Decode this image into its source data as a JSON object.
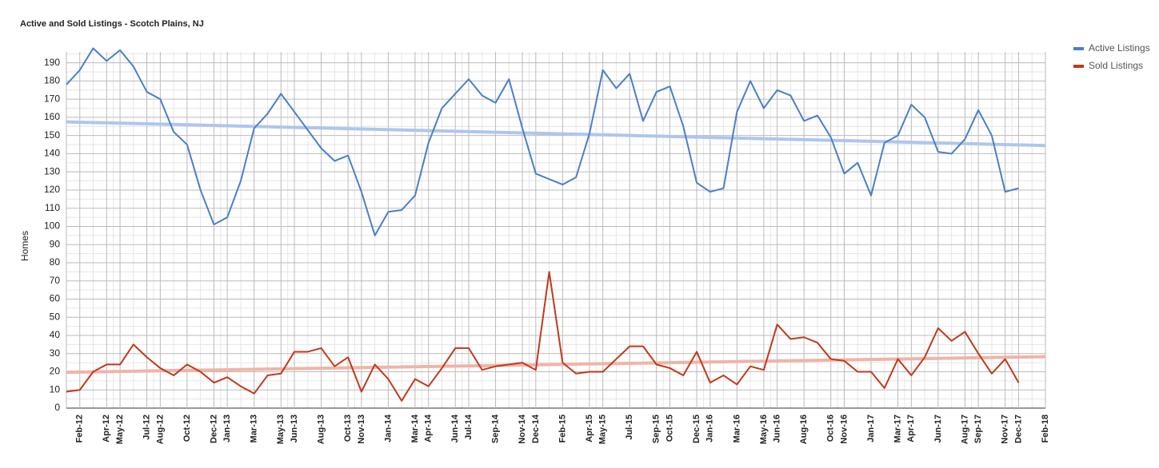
{
  "chart_data": {
    "type": "line",
    "title": "Active and Sold Listings - Scotch Plains, NJ",
    "ylabel": "Homes",
    "x": [
      "Jan-12",
      "Feb-12",
      "Mar-12",
      "Apr-12",
      "May-12",
      "Jun-12",
      "Jul-12",
      "Aug-12",
      "Sep-12",
      "Oct-12",
      "Nov-12",
      "Dec-12",
      "Jan-13",
      "Feb-13",
      "Mar-13",
      "Apr-13",
      "May-13",
      "Jun-13",
      "Jul-13",
      "Aug-13",
      "Sep-13",
      "Oct-13",
      "Nov-13",
      "Dec-13",
      "Jan-14",
      "Feb-14",
      "Mar-14",
      "Apr-14",
      "May-14",
      "Jun-14",
      "Jul-14",
      "Aug-14",
      "Sep-14",
      "Oct-14",
      "Nov-14",
      "Dec-14",
      "Jan-15",
      "Feb-15",
      "Mar-15",
      "Apr-15",
      "May-15",
      "Jun-15",
      "Jul-15",
      "Aug-15",
      "Sep-15",
      "Oct-15",
      "Nov-15",
      "Dec-15",
      "Jan-16",
      "Feb-16",
      "Mar-16",
      "Apr-16",
      "May-16",
      "Jun-16",
      "Jul-16",
      "Aug-16",
      "Sep-16",
      "Oct-16",
      "Nov-16",
      "Dec-16",
      "Jan-17",
      "Feb-17",
      "Mar-17",
      "Apr-17",
      "May-17",
      "Jun-17",
      "Jul-17",
      "Aug-17",
      "Sep-17",
      "Oct-17",
      "Nov-17",
      "Dec-17"
    ],
    "series": [
      {
        "name": "Active Listings",
        "color": "#4a7fc7",
        "trend_color": "#aec6ee",
        "trend": [
          157.5,
          144.5
        ],
        "values": [
          178,
          186,
          198,
          191,
          197,
          188,
          174,
          170,
          152,
          145,
          120,
          101,
          105,
          125,
          154,
          162,
          173,
          163,
          153,
          143,
          136,
          139,
          119,
          95,
          108,
          109,
          117,
          146,
          165,
          173,
          181,
          172,
          168,
          181,
          154,
          129,
          126,
          123,
          127,
          151,
          186,
          176,
          184,
          158,
          174,
          177,
          155,
          124,
          119,
          121,
          163,
          180,
          165,
          175,
          172,
          158,
          161,
          149,
          129,
          135,
          117,
          146,
          150,
          167,
          160,
          141,
          140,
          148,
          164,
          150,
          119,
          121
        ]
      },
      {
        "name": "Sold Listings",
        "color": "#c1391c",
        "trend_color": "#f0b4a7",
        "trend": [
          19.7,
          28.3
        ],
        "values": [
          9,
          10,
          20,
          24,
          24,
          35,
          28,
          22,
          18,
          24,
          20,
          14,
          17,
          12,
          8,
          18,
          19,
          31,
          31,
          33,
          23,
          28,
          9,
          24,
          16,
          4,
          16,
          12,
          22,
          33,
          33,
          21,
          23,
          24,
          25,
          21,
          75,
          25,
          19,
          20,
          20,
          27,
          34,
          34,
          24,
          22,
          18,
          31,
          14,
          18,
          13,
          23,
          21,
          46,
          38,
          39,
          36,
          27,
          26,
          20,
          20,
          11,
          27,
          18,
          28,
          44,
          37,
          42,
          30,
          19,
          27,
          14
        ]
      }
    ],
    "xlim": [
      "Jan-12",
      "Feb-18"
    ],
    "xticks": [
      "Feb-12",
      "Apr-12",
      "May-12",
      "Jul-12",
      "Aug-12",
      "Oct-12",
      "Dec-12",
      "Jan-13",
      "Mar-13",
      "May-13",
      "Jun-13",
      "Aug-13",
      "Oct-13",
      "Nov-13",
      "Jan-14",
      "Mar-14",
      "Apr-14",
      "Jun-14",
      "Jul-14",
      "Sep-14",
      "Nov-14",
      "Dec-14",
      "Feb-15",
      "Apr-15",
      "May-15",
      "Jul-15",
      "Sep-15",
      "Oct-15",
      "Dec-15",
      "Jan-16",
      "Mar-16",
      "May-16",
      "Jun-16",
      "Aug-16",
      "Oct-16",
      "Nov-16",
      "Jan-17",
      "Mar-17",
      "Apr-17",
      "Jun-17",
      "Aug-17",
      "Sep-17",
      "Nov-17",
      "Dec-17",
      "Feb-18"
    ],
    "ylim": [
      0,
      196
    ],
    "yticks": [
      0,
      10,
      20,
      30,
      40,
      50,
      60,
      70,
      80,
      90,
      100,
      110,
      120,
      130,
      140,
      150,
      160,
      170,
      180,
      190
    ],
    "grid": true,
    "legend": "right"
  }
}
